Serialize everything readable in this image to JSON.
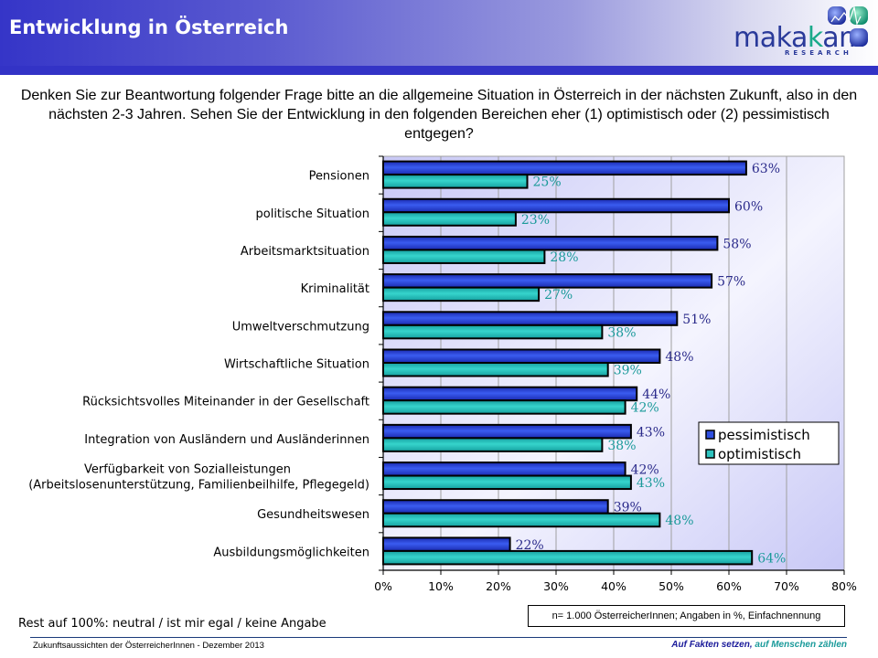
{
  "header": {
    "title": "Entwicklung in Österreich",
    "logo_brand_a": "maka",
    "logo_brand_k": "k",
    "logo_brand_b": "am",
    "logo_sub": "RESEARCH"
  },
  "question": "Denken Sie zur Beantwortung folgender Frage bitte an die allgemeine Situation in Österreich in der nächsten Zukunft, also in den nächsten 2-3 Jahren. Sehen Sie der Entwicklung in den folgenden Bereichen eher (1) optimistisch oder (2) pessimistisch entgegen?",
  "colors": {
    "pessimistisch": "#2f4fe0",
    "optimistisch": "#2ec4c0",
    "label_pess": "#2a2a8a",
    "label_opt": "#1a9a9a",
    "plot_bg": "#d0d0f8"
  },
  "chart_data": {
    "type": "bar",
    "orientation": "horizontal",
    "title": "",
    "categories": [
      "Pensionen",
      "politische Situation",
      "Arbeitsmarktsituation",
      "Kriminalität",
      "Umweltverschmutzung",
      "Wirtschaftliche Situation",
      "Rücksichtsvolles Miteinander in der Gesellschaft",
      "Integration von Ausländern und Ausländerinnen",
      "Verfügbarkeit von Sozialleistungen\n(Arbeitslosenunterstützung, Familienbeilhilfe, Pflegegeld)",
      "Gesundheitswesen",
      "Ausbildungsmöglichkeiten"
    ],
    "series": [
      {
        "name": "pessimistisch",
        "values": [
          63,
          60,
          58,
          57,
          51,
          48,
          44,
          43,
          42,
          39,
          22
        ]
      },
      {
        "name": "optimistisch",
        "values": [
          25,
          23,
          28,
          27,
          38,
          39,
          42,
          38,
          43,
          48,
          64
        ]
      }
    ],
    "xlim": [
      0,
      80
    ],
    "xticks": [
      "0%",
      "10%",
      "20%",
      "30%",
      "40%",
      "50%",
      "60%",
      "70%",
      "80%"
    ],
    "xlabel": "",
    "ylabel": "",
    "grid": true,
    "legend_position": "right-middle",
    "data_label_suffix": "%"
  },
  "notes": {
    "rest": "Rest auf 100%: neutral / ist mir egal / keine Angabe",
    "sample": "n= 1.000 ÖsterreicherInnen; Angaben in %, Einfachnennung"
  },
  "footer": {
    "left": "Zukunftsaussichten der ÖsterreicherInnen - Dezember  2013",
    "right_a": "Auf Fakten setzen,",
    "right_b": " auf Menschen zählen"
  }
}
